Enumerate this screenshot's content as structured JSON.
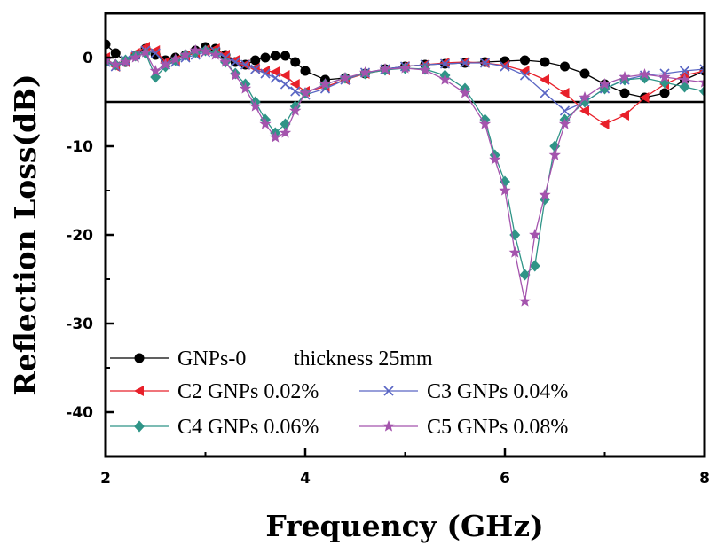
{
  "chart_data": {
    "type": "line",
    "xlabel": "Frequency (GHz)",
    "ylabel": "Reflection Loss(dB)",
    "xlim": [
      2,
      8
    ],
    "ylim": [
      -45,
      5
    ],
    "x_ticks": [
      "2",
      "4",
      "6",
      "8"
    ],
    "y_ticks": [
      "0",
      "-10",
      "-20",
      "-30",
      "-40"
    ],
    "reference_line_y": -5,
    "grid": false,
    "legend_position": "bottom-left",
    "series": [
      {
        "name": "GNPs-0",
        "marker": "circle",
        "color": "#000000",
        "x": [
          2.0,
          2.1,
          2.2,
          2.3,
          2.4,
          2.5,
          2.6,
          2.7,
          2.8,
          2.9,
          3.0,
          3.1,
          3.2,
          3.3,
          3.4,
          3.5,
          3.6,
          3.7,
          3.8,
          3.9,
          4.0,
          4.2,
          4.4,
          4.6,
          4.8,
          5.0,
          5.2,
          5.4,
          5.6,
          5.8,
          6.0,
          6.2,
          6.4,
          6.6,
          6.8,
          7.0,
          7.2,
          7.4,
          7.6,
          7.8,
          8.0
        ],
        "y": [
          1.5,
          0.5,
          -0.5,
          0.2,
          1.0,
          0.3,
          -0.3,
          0.0,
          0.3,
          0.8,
          1.2,
          1.0,
          0.3,
          -0.5,
          -0.8,
          -0.3,
          0.0,
          0.2,
          0.2,
          -0.5,
          -1.5,
          -2.5,
          -2.3,
          -1.8,
          -1.3,
          -1.0,
          -0.8,
          -0.7,
          -0.6,
          -0.5,
          -0.4,
          -0.3,
          -0.5,
          -1.0,
          -1.8,
          -3.0,
          -4.0,
          -4.5,
          -4.0,
          -2.5,
          -1.5
        ]
      },
      {
        "name": "C2 GNPs 0.02%",
        "marker": "triangle-left",
        "color": "#e8202a",
        "x": [
          2.0,
          2.1,
          2.2,
          2.3,
          2.4,
          2.5,
          2.6,
          2.7,
          2.8,
          2.9,
          3.0,
          3.1,
          3.2,
          3.3,
          3.4,
          3.5,
          3.6,
          3.7,
          3.8,
          3.9,
          4.0,
          4.2,
          4.4,
          4.6,
          4.8,
          5.0,
          5.2,
          5.4,
          5.6,
          5.8,
          6.0,
          6.2,
          6.4,
          6.6,
          6.8,
          7.0,
          7.2,
          7.4,
          7.6,
          7.8,
          8.0
        ],
        "y": [
          0.0,
          -1.0,
          -0.5,
          0.5,
          1.2,
          0.8,
          -0.5,
          -0.3,
          0.2,
          0.5,
          0.9,
          1.0,
          0.3,
          -0.3,
          -0.8,
          -1.2,
          -1.5,
          -1.6,
          -2.0,
          -3.0,
          -3.8,
          -3.3,
          -2.5,
          -1.8,
          -1.4,
          -1.0,
          -0.8,
          -0.6,
          -0.5,
          -0.6,
          -0.9,
          -1.5,
          -2.5,
          -4.0,
          -6.0,
          -7.5,
          -6.5,
          -4.5,
          -3.0,
          -2.0,
          -1.5
        ]
      },
      {
        "name": "C3 GNPs 0.04%",
        "marker": "x",
        "color": "#5a66c4",
        "x": [
          2.0,
          2.1,
          2.2,
          2.3,
          2.4,
          2.5,
          2.6,
          2.7,
          2.8,
          2.9,
          3.0,
          3.1,
          3.2,
          3.3,
          3.4,
          3.5,
          3.6,
          3.7,
          3.8,
          3.9,
          4.0,
          4.2,
          4.4,
          4.6,
          4.8,
          5.0,
          5.2,
          5.4,
          5.6,
          5.8,
          6.0,
          6.2,
          6.4,
          6.6,
          6.8,
          7.0,
          7.2,
          7.4,
          7.6,
          7.8,
          8.0
        ],
        "y": [
          -0.5,
          -1.0,
          -0.3,
          0.3,
          0.8,
          0.5,
          -0.8,
          -0.5,
          0.0,
          0.3,
          0.6,
          0.7,
          0.0,
          -0.5,
          -0.8,
          -1.3,
          -1.8,
          -2.3,
          -3.0,
          -3.8,
          -4.2,
          -3.5,
          -2.5,
          -1.7,
          -1.3,
          -1.0,
          -0.8,
          -0.7,
          -0.6,
          -0.6,
          -1.0,
          -2.0,
          -4.0,
          -6.0,
          -5.0,
          -3.5,
          -2.5,
          -2.0,
          -1.8,
          -1.5,
          -1.3
        ]
      },
      {
        "name": "C4 GNPs 0.06%",
        "marker": "diamond",
        "color": "#2f9487",
        "x": [
          2.0,
          2.1,
          2.2,
          2.3,
          2.4,
          2.5,
          2.6,
          2.7,
          2.8,
          2.9,
          3.0,
          3.1,
          3.2,
          3.3,
          3.4,
          3.5,
          3.6,
          3.7,
          3.8,
          3.9,
          4.0,
          4.2,
          4.4,
          4.6,
          4.8,
          5.0,
          5.2,
          5.4,
          5.6,
          5.8,
          5.9,
          6.0,
          6.1,
          6.2,
          6.3,
          6.4,
          6.5,
          6.6,
          6.8,
          7.0,
          7.2,
          7.4,
          7.6,
          7.8,
          8.0
        ],
        "y": [
          -0.5,
          -0.8,
          -0.3,
          0.2,
          0.5,
          -2.2,
          -1.0,
          -0.3,
          0.3,
          0.6,
          0.8,
          0.5,
          -0.5,
          -1.8,
          -3.0,
          -5.0,
          -7.0,
          -8.5,
          -7.5,
          -5.5,
          -4.0,
          -3.0,
          -2.3,
          -1.8,
          -1.4,
          -1.2,
          -1.3,
          -2.0,
          -3.5,
          -7.0,
          -11.0,
          -14.0,
          -20.0,
          -24.5,
          -23.5,
          -16.0,
          -10.0,
          -7.0,
          -5.0,
          -3.5,
          -2.5,
          -2.3,
          -2.8,
          -3.3,
          -3.8
        ]
      },
      {
        "name": "C5 GNPs 0.08%",
        "marker": "star",
        "color": "#a454ad",
        "x": [
          2.0,
          2.1,
          2.2,
          2.3,
          2.4,
          2.5,
          2.6,
          2.7,
          2.8,
          2.9,
          3.0,
          3.1,
          3.2,
          3.3,
          3.4,
          3.5,
          3.6,
          3.7,
          3.8,
          3.9,
          4.0,
          4.2,
          4.4,
          4.6,
          4.8,
          5.0,
          5.2,
          5.4,
          5.6,
          5.8,
          5.9,
          6.0,
          6.1,
          6.2,
          6.3,
          6.4,
          6.5,
          6.6,
          6.8,
          7.0,
          7.2,
          7.4,
          7.6,
          7.8,
          8.0
        ],
        "y": [
          -0.3,
          -0.8,
          -0.5,
          0.0,
          0.6,
          -1.5,
          -0.8,
          -0.2,
          0.3,
          0.8,
          0.7,
          0.3,
          -0.5,
          -2.0,
          -3.5,
          -5.5,
          -7.5,
          -9.0,
          -8.5,
          -6.0,
          -4.0,
          -3.0,
          -2.3,
          -1.7,
          -1.3,
          -1.2,
          -1.4,
          -2.5,
          -4.0,
          -7.5,
          -11.5,
          -15.0,
          -22.0,
          -27.5,
          -20.0,
          -15.5,
          -11.0,
          -7.5,
          -4.5,
          -3.0,
          -2.2,
          -1.9,
          -2.2,
          -2.5,
          -2.8
        ]
      }
    ],
    "annotations": [
      {
        "text": "thickness 25mm"
      }
    ]
  }
}
